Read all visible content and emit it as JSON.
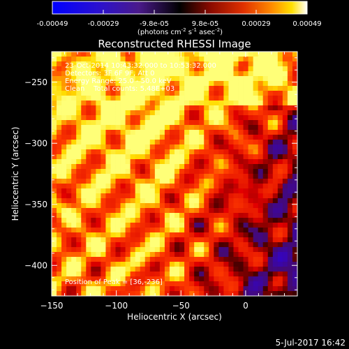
{
  "colorbar": {
    "ticks": [
      "-0.00049",
      "-0.00029",
      "-9.8e-05",
      "9.8e-05",
      "0.00029",
      "0.00049"
    ],
    "units_main": "(photons cm",
    "units_exp1": "-2",
    "units_mid": " s",
    "units_exp2": "-1",
    "units_end": " asec",
    "units_exp3": "-2",
    "units_close": ")"
  },
  "chart_data": {
    "type": "heatmap",
    "title": "Reconstructed RHESSI Image",
    "xlabel": "Heliocentric X (arcsec)",
    "ylabel": "Heliocentric Y (arcsec)",
    "xlim": [
      -150,
      40
    ],
    "ylim": [
      -425,
      -225
    ],
    "x_ticks": [
      -150,
      -100,
      -50,
      0
    ],
    "y_ticks": [
      -250,
      -300,
      -350,
      -400
    ],
    "x_tick_labels": [
      "−150",
      "−100",
      "−50",
      "0"
    ],
    "y_tick_labels": [
      "−250",
      "−300",
      "−350",
      "−400"
    ],
    "value_range": [
      -0.00049,
      0.00049
    ],
    "colormap": "RHESSI red-temperature (blue negative, black zero, red/yellow/white positive)",
    "grid": false,
    "peak_position": [
      36,
      -236
    ]
  },
  "annotations": {
    "time_range": "23-Oct-2014 10:43:32.000 to 10:53:32.000",
    "detectors": "Detectors: 3F 6F 9F, Att 0",
    "energy_range": "Energy Range: 25.0 - 50.0 keV",
    "clean_totals": "Clean    Total counts: 5.48E+03",
    "peak_position": "Position of Peak = [36,-236]"
  },
  "footer": {
    "timestamp": "5-Jul-2017 16:42"
  },
  "colors": {
    "background": "#000000",
    "frame": "#ffffff"
  }
}
